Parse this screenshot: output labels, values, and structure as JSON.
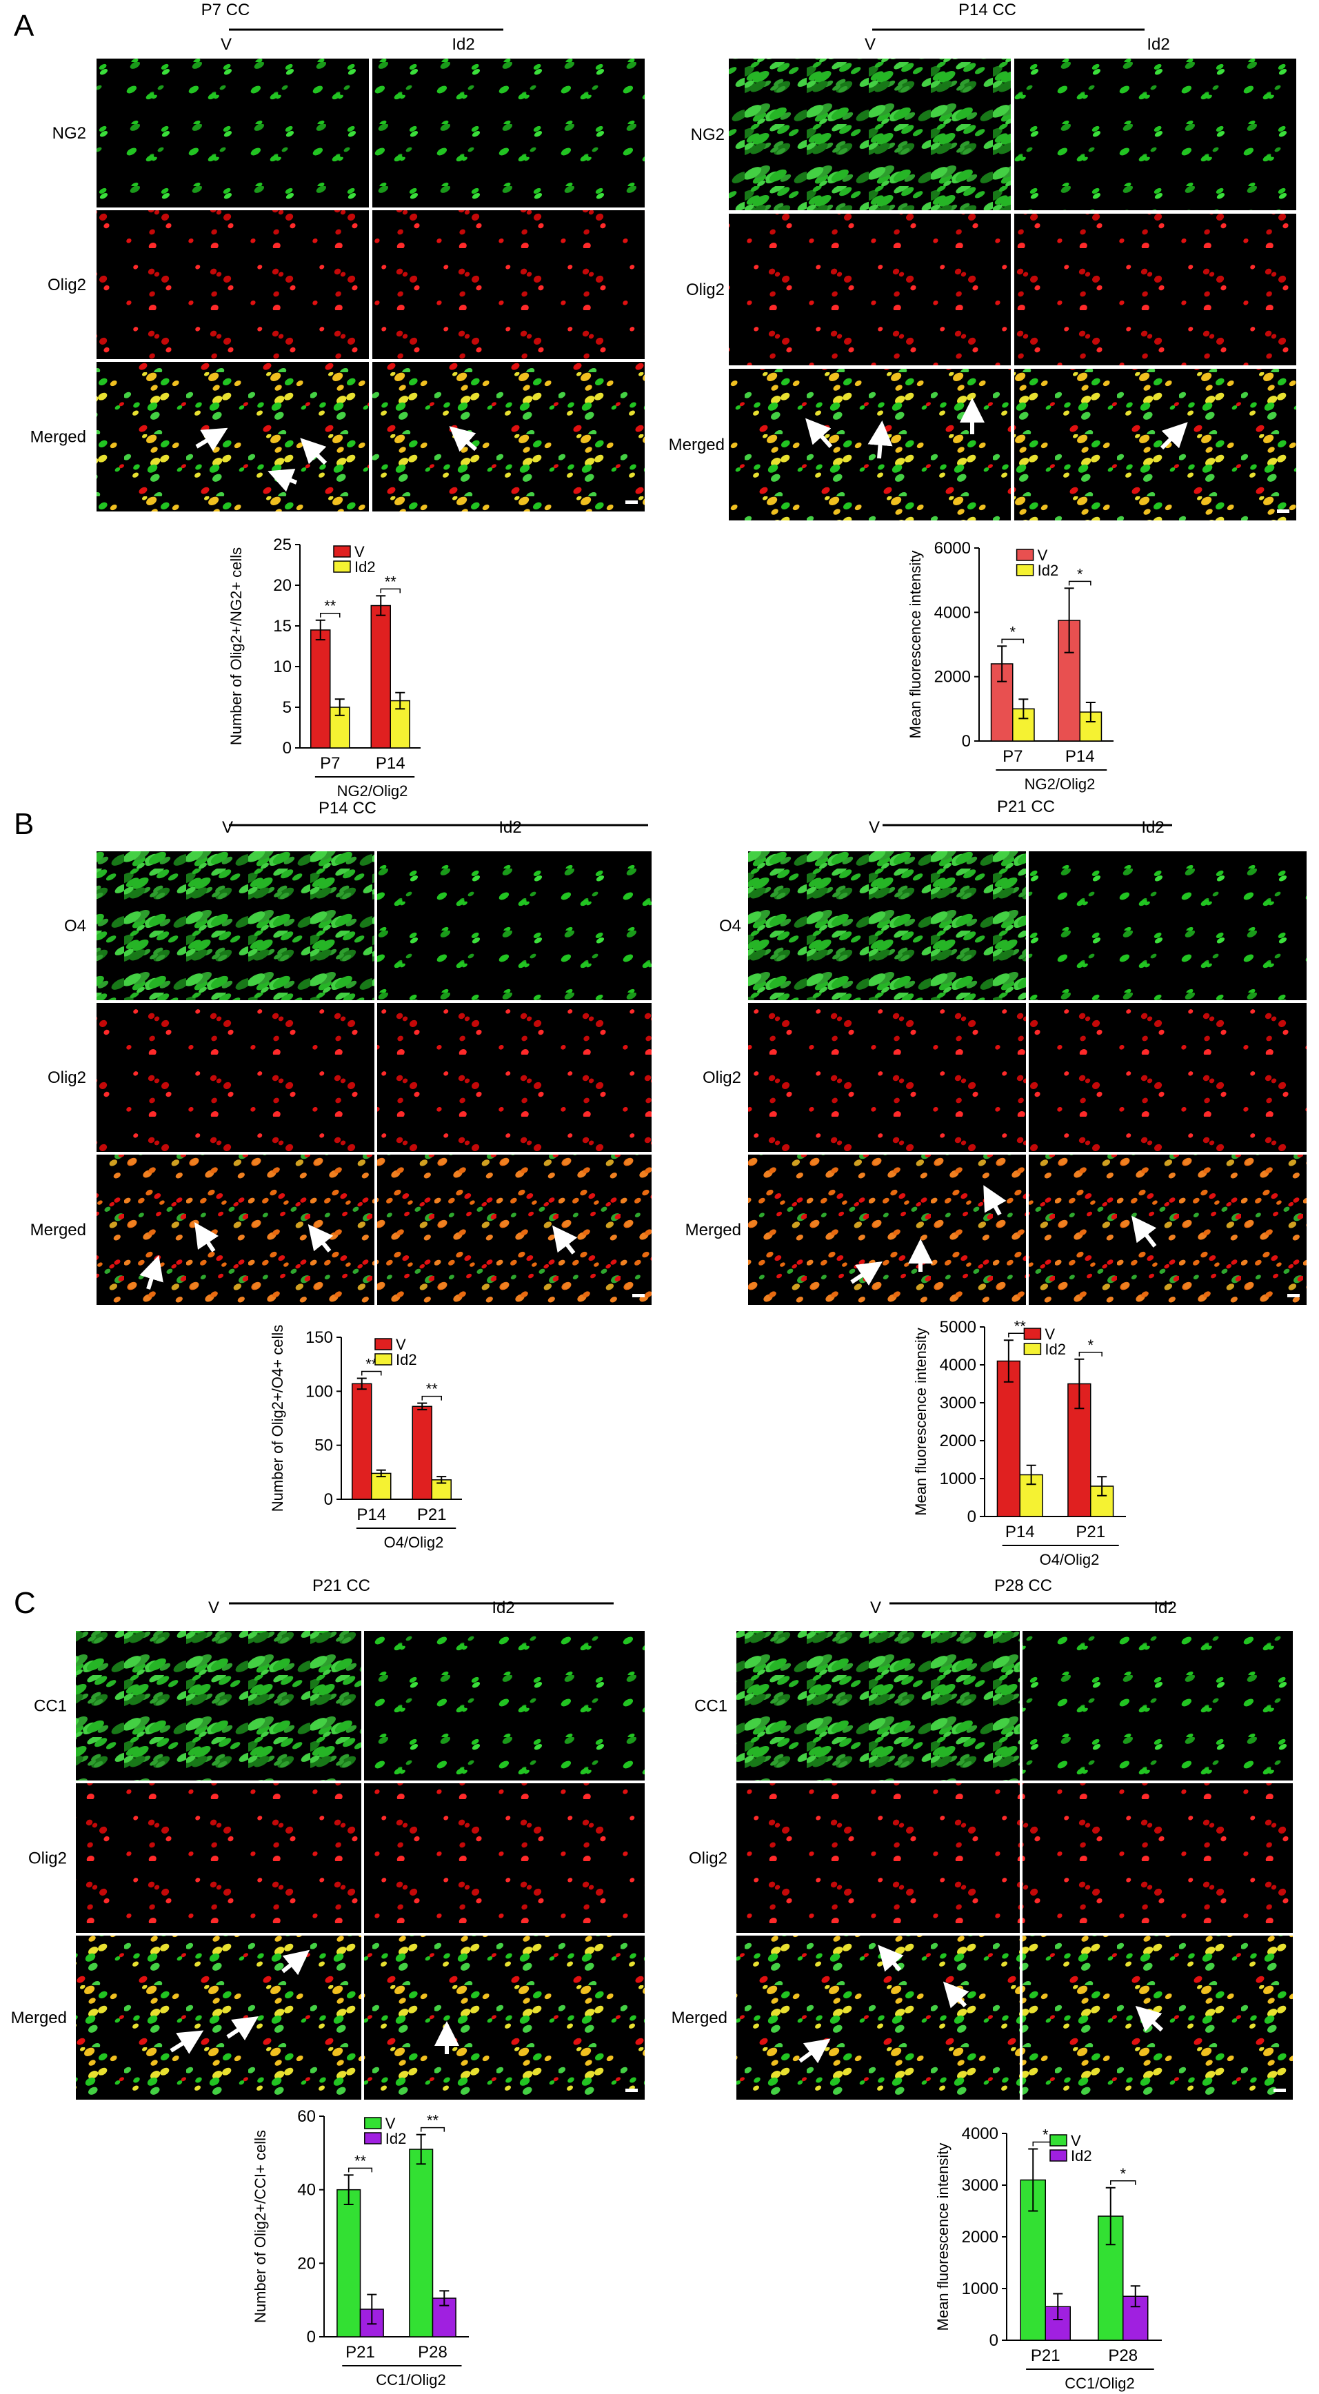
{
  "panels": [
    {
      "letter": "A",
      "left": {
        "condition": "P7 CC",
        "column_labels": [
          "V",
          "Id2"
        ],
        "row_labels": [
          "NG2",
          "Olig2",
          "Merged"
        ],
        "stain_colors": [
          "#22c422",
          "#e01010",
          "mixed-green"
        ],
        "chart": {
          "ylabel": "Number of Olig2+/NG2+ cells",
          "ylim": [
            0,
            25
          ],
          "ticks": [
            "0",
            "5",
            "10",
            "15",
            "20",
            "25"
          ],
          "categories": [
            "P7",
            "P14"
          ],
          "group_label": "NG2/Olig2",
          "legend": [
            "V",
            "Id2"
          ],
          "colors": [
            "#e02020",
            "#f5f232"
          ],
          "V": [
            14.5,
            17.5
          ],
          "V_err": [
            1.2,
            1.2
          ],
          "Id2": [
            5.0,
            5.8
          ],
          "Id2_err": [
            1.0,
            1.0
          ],
          "sig": [
            "**",
            "**"
          ]
        }
      },
      "right": {
        "condition": "P14 CC",
        "column_labels": [
          "V",
          "Id2"
        ],
        "row_labels": [
          "NG2",
          "Olig2",
          "Merged"
        ],
        "stain_colors": [
          "#22c422",
          "#e01010",
          "mixed-green"
        ],
        "chart": {
          "ylabel": "Mean fluorescence intensity",
          "ylim": [
            0,
            6000
          ],
          "ticks": [
            "0",
            "2000",
            "4000",
            "6000"
          ],
          "categories": [
            "P7",
            "P14"
          ],
          "group_label": "NG2/Olig2",
          "legend": [
            "V",
            "Id2"
          ],
          "colors": [
            "#e85050",
            "#f5f232"
          ],
          "V": [
            2400,
            3750
          ],
          "V_err": [
            550,
            1000
          ],
          "Id2": [
            1000,
            900
          ],
          "Id2_err": [
            300,
            300
          ],
          "sig": [
            "*",
            "*"
          ]
        }
      }
    },
    {
      "letter": "B",
      "left": {
        "condition": "P14 CC",
        "column_labels": [
          "V",
          "Id2"
        ],
        "row_labels": [
          "O4",
          "Olig2",
          "Merged"
        ],
        "stain_colors": [
          "#22c422",
          "#e01010",
          "mixed-orange"
        ],
        "chart": {
          "ylabel": "Number of Olig2+/O4+ cells",
          "ylim": [
            0,
            150
          ],
          "ticks": [
            "0",
            "50",
            "100",
            "150"
          ],
          "categories": [
            "P14",
            "P21"
          ],
          "group_label": "O4/Olig2",
          "legend": [
            "V",
            "Id2"
          ],
          "colors": [
            "#e02020",
            "#f5f232"
          ],
          "V": [
            107,
            86
          ],
          "V_err": [
            5,
            3
          ],
          "Id2": [
            24,
            18
          ],
          "Id2_err": [
            3,
            3
          ],
          "sig": [
            "**",
            "**"
          ]
        }
      },
      "right": {
        "condition": "P21 CC",
        "column_labels": [
          "V",
          "Id2"
        ],
        "row_labels": [
          "O4",
          "Olig2",
          "Merged"
        ],
        "stain_colors": [
          "#22c422",
          "#e01010",
          "mixed-orange"
        ],
        "chart": {
          "ylabel": "Mean fluorescence intensity",
          "ylim": [
            0,
            5000
          ],
          "ticks": [
            "0",
            "1000",
            "2000",
            "3000",
            "4000",
            "5000"
          ],
          "categories": [
            "P14",
            "P21"
          ],
          "group_label": "O4/Olig2",
          "legend": [
            "V",
            "Id2"
          ],
          "colors": [
            "#e02020",
            "#f5f232"
          ],
          "V": [
            4100,
            3500
          ],
          "V_err": [
            550,
            650
          ],
          "Id2": [
            1100,
            800
          ],
          "Id2_err": [
            250,
            250
          ],
          "sig": [
            "**",
            "*"
          ]
        }
      }
    },
    {
      "letter": "C",
      "left": {
        "condition": "P21 CC",
        "column_labels": [
          "V",
          "Id2"
        ],
        "row_labels": [
          "CC1",
          "Olig2",
          "Merged"
        ],
        "stain_colors": [
          "#22c422",
          "#e01010",
          "mixed-green"
        ],
        "chart": {
          "ylabel": "Number of Olig2+/CCI+ cells",
          "ylim": [
            0,
            60
          ],
          "ticks": [
            "0",
            "20",
            "40",
            "60"
          ],
          "categories": [
            "P21",
            "P28"
          ],
          "group_label": "CC1/Olig2",
          "legend": [
            "V",
            "Id2"
          ],
          "colors": [
            "#33e033",
            "#a020e0"
          ],
          "V": [
            40,
            51
          ],
          "V_err": [
            4,
            4
          ],
          "Id2": [
            7.5,
            10.5
          ],
          "Id2_err": [
            4,
            2
          ],
          "sig": [
            "**",
            "**"
          ]
        }
      },
      "right": {
        "condition": "P28 CC",
        "column_labels": [
          "V",
          "Id2"
        ],
        "row_labels": [
          "CC1",
          "Olig2",
          "Merged"
        ],
        "stain_colors": [
          "#22c422",
          "#e01010",
          "mixed-green"
        ],
        "chart": {
          "ylabel": "Mean fluorescence intensity",
          "ylim": [
            0,
            4000
          ],
          "ticks": [
            "0",
            "1000",
            "2000",
            "3000",
            "4000"
          ],
          "categories": [
            "P21",
            "P28"
          ],
          "group_label": "CC1/Olig2",
          "legend": [
            "V",
            "Id2"
          ],
          "colors": [
            "#33e033",
            "#a020e0"
          ],
          "V": [
            3100,
            2400
          ],
          "V_err": [
            600,
            550
          ],
          "Id2": [
            650,
            850
          ],
          "Id2_err": [
            250,
            200
          ],
          "sig": [
            "*",
            "*"
          ]
        }
      }
    }
  ]
}
